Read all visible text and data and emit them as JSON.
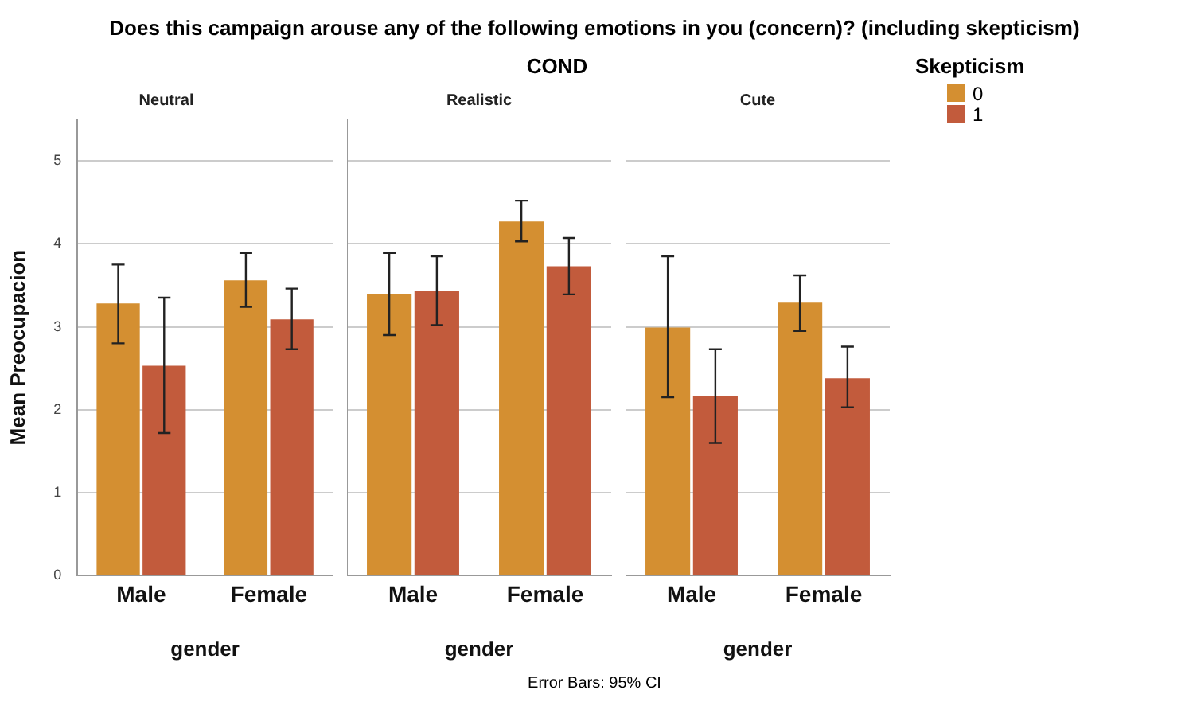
{
  "chart_data": [
    {
      "type": "bar",
      "title": "Does this campaign arouse any of the following emotions in you (concern)? (including skepticism)",
      "annotations": [
        "Neutral",
        "Error Bars: 95% CI"
      ],
      "xlabel": "gender",
      "ylabel": "Mean Preocupacion",
      "legend_title": "Skepticism",
      "legend": "top right",
      "grid": "y",
      "categories": [
        "Male",
        "Female"
      ],
      "ylim": [
        0,
        5.5
      ],
      "yticks": [
        0,
        1,
        2,
        3,
        4,
        5
      ],
      "series": [
        {
          "name": "0",
          "color": "#d48f31",
          "values": [
            3.28,
            3.56
          ],
          "errors": [
            [
              2.8,
              3.75
            ],
            [
              3.24,
              3.89
            ]
          ]
        },
        {
          "name": "1",
          "color": "#c25b3c",
          "values": [
            2.53,
            3.09
          ],
          "errors": [
            [
              1.72,
              3.35
            ],
            [
              2.73,
              3.46
            ]
          ]
        }
      ]
    },
    {
      "type": "bar",
      "subtitle": "COND",
      "annotations": [
        "Realistic"
      ],
      "xlabel": "gender",
      "grid": "y",
      "tick_labels": "x",
      "categories": [
        "Male",
        "Female"
      ],
      "ylim": [
        0,
        5.5
      ],
      "yticks": [
        0,
        1,
        2,
        3,
        4,
        5
      ],
      "series": [
        {
          "color": "#d48f31",
          "values": [
            3.39,
            4.27
          ],
          "errors": [
            [
              2.9,
              3.89
            ],
            [
              4.03,
              4.52
            ]
          ]
        },
        {
          "color": "#c25b3c",
          "values": [
            3.43,
            3.73
          ],
          "errors": [
            [
              3.02,
              3.85
            ],
            [
              3.39,
              4.07
            ]
          ]
        }
      ]
    },
    {
      "type": "bar",
      "annotations": [
        "Cute"
      ],
      "xlabel": "gender",
      "grid": "y",
      "tick_labels": "x",
      "categories": [
        "Male",
        "Female"
      ],
      "ylim": [
        0,
        5.5
      ],
      "yticks": [
        0,
        1,
        2,
        3,
        4,
        5
      ],
      "series": [
        {
          "color": "#d48f31",
          "values": [
            2.99,
            3.29
          ],
          "errors": [
            [
              2.15,
              3.85
            ],
            [
              2.95,
              3.62
            ]
          ]
        },
        {
          "color": "#c25b3c",
          "values": [
            2.16,
            2.38
          ],
          "errors": [
            [
              1.6,
              2.73
            ],
            [
              2.03,
              2.76
            ]
          ]
        }
      ]
    }
  ]
}
